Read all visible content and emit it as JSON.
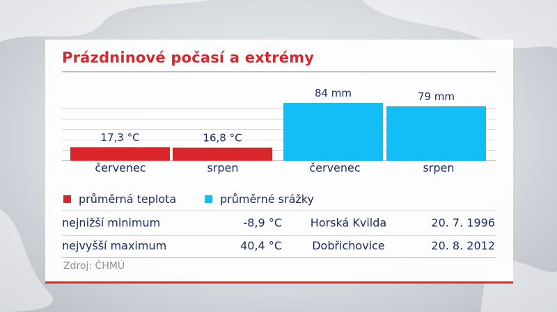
{
  "title": "Prázdninové počasí a extrémy",
  "chart_data": {
    "type": "bar",
    "panels": [
      {
        "categories": [
          "červenec",
          "srpen"
        ],
        "values": [
          17.3,
          16.8
        ],
        "value_labels": [
          "17,3 °C",
          "16,8 °C"
        ],
        "series_name": "průměrná teplota",
        "unit": "°C",
        "color": "#d8262b"
      },
      {
        "categories": [
          "červenec",
          "srpen"
        ],
        "values": [
          84,
          79
        ],
        "value_labels": [
          "84 mm",
          "79 mm"
        ],
        "series_name": "průměrné srážky",
        "unit": "mm",
        "color": "#13bdf5"
      }
    ],
    "grid": true
  },
  "legend": [
    {
      "label": "průměrná teplota",
      "color": "#d8262b"
    },
    {
      "label": "průměrné srážky",
      "color": "#13bdf5"
    }
  ],
  "extremes": [
    {
      "label": "nejnižší minimum",
      "value": "-8,9 °C",
      "place": "Horská Kvilda",
      "date": "20. 7. 1996"
    },
    {
      "label": "nejvyšší maximum",
      "value": "40,4 °C",
      "place": "Dobřichovice",
      "date": "20. 8. 2012"
    }
  ],
  "source": "Zdroj: ČHMÚ"
}
